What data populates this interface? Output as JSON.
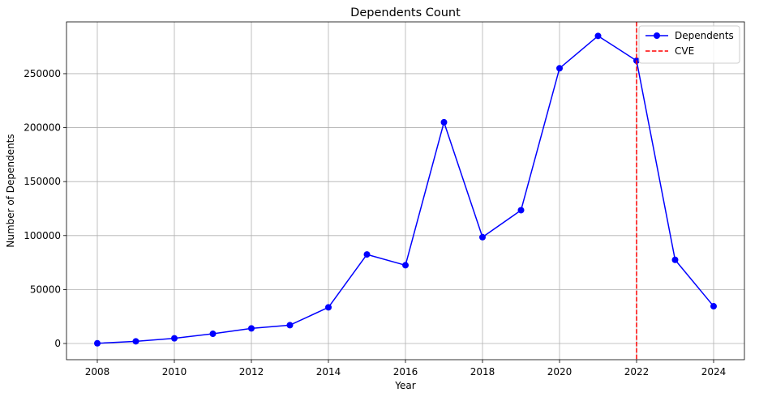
{
  "chart_data": {
    "type": "line",
    "title": "Dependents Count",
    "xlabel": "Year",
    "ylabel": "Number of Dependents",
    "xlim": [
      2007.2,
      2024.8
    ],
    "ylim": [
      -15000,
      298000
    ],
    "x_ticks": [
      2008,
      2010,
      2012,
      2014,
      2016,
      2018,
      2020,
      2022,
      2024
    ],
    "y_ticks": [
      0,
      50000,
      100000,
      150000,
      200000,
      250000
    ],
    "grid": true,
    "legend_position": "top-right",
    "series": [
      {
        "name": "Dependents",
        "color": "#0000ff",
        "marker": "circle",
        "x": [
          2008,
          2009,
          2010,
          2011,
          2012,
          2013,
          2014,
          2015,
          2016,
          2017,
          2018,
          2019,
          2020,
          2021,
          2022,
          2023,
          2024
        ],
        "y": [
          200,
          2000,
          4800,
          9000,
          14000,
          17000,
          33500,
          82500,
          72500,
          205000,
          98500,
          123500,
          255000,
          285000,
          262000,
          77500,
          34500
        ]
      }
    ],
    "vertical_lines": [
      {
        "name": "CVE",
        "x": 2022,
        "color": "#ff0000",
        "style": "dashed"
      }
    ]
  }
}
